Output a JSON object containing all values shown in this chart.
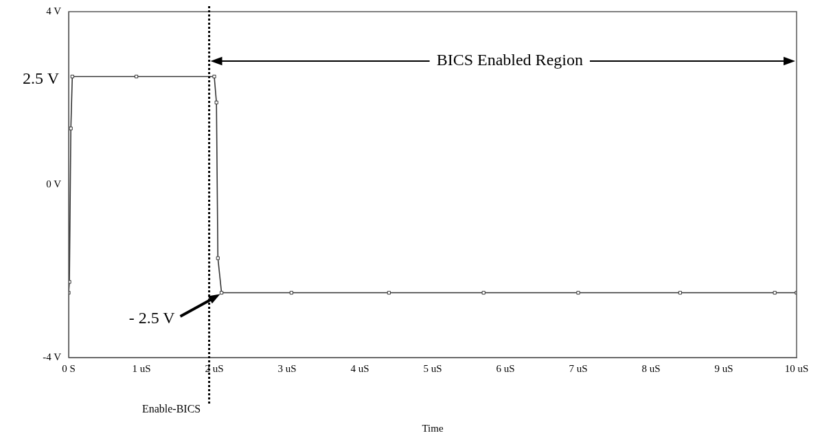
{
  "chart_data": {
    "type": "line",
    "xlabel": "Time",
    "x": [
      0,
      0.01,
      0.03,
      0.05,
      0.93,
      2.0,
      2.03,
      2.05,
      2.1,
      3.06,
      4.4,
      5.7,
      7.0,
      8.4,
      9.7,
      10
    ],
    "series": [
      {
        "color": "#333333",
        "values": [
          -2.5,
          -2.25,
          1.3,
          2.5,
          2.5,
          2.5,
          1.9,
          -1.7,
          -2.5,
          -2.5,
          -2.5,
          -2.5,
          -2.5,
          -2.5,
          -2.5,
          -2.5
        ]
      }
    ],
    "xlim": [
      0,
      10
    ],
    "xticks": [
      {
        "value": 0,
        "label": "0 S"
      },
      {
        "value": 1,
        "label": "1 uS"
      },
      {
        "value": 2,
        "label": "2 uS"
      },
      {
        "value": 3,
        "label": "3 uS"
      },
      {
        "value": 4,
        "label": "4 uS"
      },
      {
        "value": 5,
        "label": "5 uS"
      },
      {
        "value": 6,
        "label": "6 uS"
      },
      {
        "value": 7,
        "label": "7 uS"
      },
      {
        "value": 8,
        "label": "8 uS"
      },
      {
        "value": 9,
        "label": "9 uS"
      },
      {
        "value": 10,
        "label": "10 uS"
      }
    ],
    "ylim": [
      -4,
      4
    ],
    "yticks": [
      {
        "value": -4,
        "label": "-4 V"
      },
      {
        "value": 0,
        "label": "0 V"
      },
      {
        "value": 4,
        "label": "4 V"
      }
    ],
    "ref_lines": [
      {
        "axis": "x",
        "value": 1.93,
        "color": "#000000",
        "line_style": "dotted"
      }
    ],
    "annotations": [
      {
        "text": "2.5 V",
        "x": 0,
        "y": 2.5
      },
      "- 2.5 V",
      "Enable-BICS",
      "BICS Enabled Region"
    ],
    "marker": "square",
    "line_style": "solid",
    "grid": false,
    "legend": false
  }
}
